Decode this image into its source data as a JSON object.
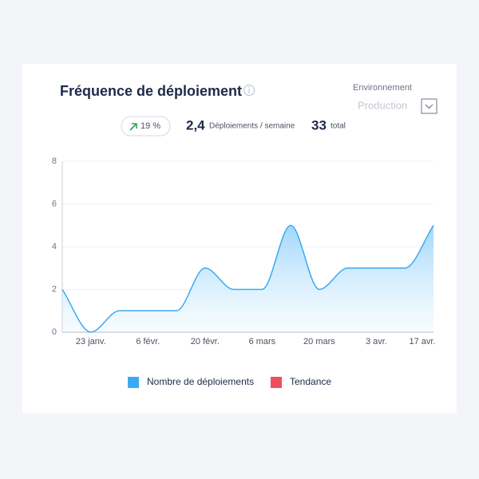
{
  "header": {
    "environment_label": "Environnement",
    "environment_value": "Production"
  },
  "stats": {
    "change": "19 %",
    "per_week": "2,4",
    "per_week_label": "Déploiements / semaine",
    "total": "33",
    "total_label": "total"
  },
  "chart_data": {
    "type": "area",
    "title": "Fréquence de déploiement",
    "categories": [
      null,
      "23 janv.",
      null,
      "6 févr.",
      null,
      "20 févr.",
      null,
      "6 mars",
      null,
      "20 mars",
      null,
      "3 avr.",
      null,
      "17 avr."
    ],
    "series": [
      {
        "name": "Nombre de déploiements",
        "color": "#3aaaf2",
        "values": [
          2,
          0,
          1,
          1,
          1,
          3,
          2,
          2,
          5,
          2,
          3,
          3,
          3,
          5
        ]
      },
      {
        "name": "Tendance",
        "color": "#ef4f5c"
      }
    ],
    "ylim": [
      0,
      8
    ],
    "yticks": [
      0,
      2,
      4,
      6,
      8
    ],
    "grid": true
  }
}
